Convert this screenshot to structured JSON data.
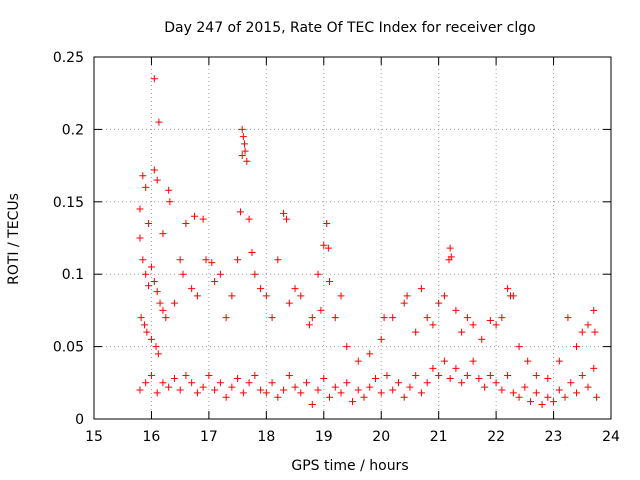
{
  "chart_data": {
    "type": "scatter",
    "title": "Day 247 of 2015, Rate Of TEC Index for receiver clgo",
    "xlabel": "GPS time / hours",
    "ylabel": "ROTI / TECUs",
    "xlim": [
      15,
      24
    ],
    "ylim": [
      0,
      0.25
    ],
    "grid": true,
    "marker": "+",
    "series_color": "#ff0000",
    "x_ticks": [
      {
        "value": 15,
        "label": "15"
      },
      {
        "value": 16,
        "label": "16"
      },
      {
        "value": 17,
        "label": "17"
      },
      {
        "value": 18,
        "label": "18"
      },
      {
        "value": 19,
        "label": "19"
      },
      {
        "value": 20,
        "label": "20"
      },
      {
        "value": 21,
        "label": "21"
      },
      {
        "value": 22,
        "label": "22"
      },
      {
        "value": 23,
        "label": "23"
      },
      {
        "value": 24,
        "label": "24"
      }
    ],
    "y_ticks": [
      {
        "value": 0,
        "label": "0"
      },
      {
        "value": 0.05,
        "label": "0.05"
      },
      {
        "value": 0.1,
        "label": "0.1"
      },
      {
        "value": 0.15,
        "label": "0.15"
      },
      {
        "value": 0.2,
        "label": "0.2"
      },
      {
        "value": 0.25,
        "label": "0.25"
      }
    ],
    "points": [
      [
        16.05,
        0.235
      ],
      [
        16.13,
        0.205
      ],
      [
        17.58,
        0.2
      ],
      [
        17.6,
        0.195
      ],
      [
        17.62,
        0.19
      ],
      [
        17.58,
        0.182
      ],
      [
        17.63,
        0.185
      ],
      [
        17.66,
        0.178
      ],
      [
        15.85,
        0.168
      ],
      [
        15.9,
        0.16
      ],
      [
        16.05,
        0.172
      ],
      [
        16.1,
        0.165
      ],
      [
        16.3,
        0.158
      ],
      [
        16.32,
        0.15
      ],
      [
        15.8,
        0.145
      ],
      [
        15.95,
        0.135
      ],
      [
        16.2,
        0.128
      ],
      [
        16.6,
        0.135
      ],
      [
        16.75,
        0.14
      ],
      [
        16.9,
        0.138
      ],
      [
        17.55,
        0.143
      ],
      [
        17.7,
        0.138
      ],
      [
        18.3,
        0.142
      ],
      [
        18.35,
        0.138
      ],
      [
        19.05,
        0.135
      ],
      [
        19.0,
        0.12
      ],
      [
        19.08,
        0.118
      ],
      [
        21.2,
        0.118
      ],
      [
        21.22,
        0.112
      ],
      [
        21.18,
        0.11
      ],
      [
        22.2,
        0.09
      ],
      [
        22.25,
        0.085
      ],
      [
        15.8,
        0.125
      ],
      [
        15.85,
        0.11
      ],
      [
        15.9,
        0.1
      ],
      [
        15.95,
        0.092
      ],
      [
        16.0,
        0.105
      ],
      [
        16.05,
        0.095
      ],
      [
        16.1,
        0.088
      ],
      [
        16.15,
        0.08
      ],
      [
        16.2,
        0.075
      ],
      [
        15.82,
        0.07
      ],
      [
        15.88,
        0.065
      ],
      [
        15.92,
        0.06
      ],
      [
        16.0,
        0.055
      ],
      [
        16.08,
        0.05
      ],
      [
        16.12,
        0.045
      ],
      [
        16.25,
        0.07
      ],
      [
        16.4,
        0.08
      ],
      [
        16.5,
        0.11
      ],
      [
        16.55,
        0.1
      ],
      [
        16.7,
        0.09
      ],
      [
        16.8,
        0.085
      ],
      [
        16.95,
        0.11
      ],
      [
        17.05,
        0.108
      ],
      [
        17.1,
        0.095
      ],
      [
        17.2,
        0.1
      ],
      [
        17.3,
        0.07
      ],
      [
        17.4,
        0.085
      ],
      [
        17.5,
        0.11
      ],
      [
        17.75,
        0.115
      ],
      [
        17.8,
        0.1
      ],
      [
        17.9,
        0.09
      ],
      [
        18.0,
        0.085
      ],
      [
        18.1,
        0.07
      ],
      [
        18.2,
        0.11
      ],
      [
        18.4,
        0.08
      ],
      [
        18.5,
        0.09
      ],
      [
        18.6,
        0.085
      ],
      [
        18.75,
        0.065
      ],
      [
        18.8,
        0.07
      ],
      [
        18.9,
        0.1
      ],
      [
        18.95,
        0.075
      ],
      [
        19.1,
        0.095
      ],
      [
        19.2,
        0.07
      ],
      [
        19.3,
        0.085
      ],
      [
        19.4,
        0.05
      ],
      [
        19.6,
        0.04
      ],
      [
        19.8,
        0.045
      ],
      [
        20.0,
        0.055
      ],
      [
        20.05,
        0.07
      ],
      [
        20.2,
        0.07
      ],
      [
        20.4,
        0.08
      ],
      [
        20.45,
        0.085
      ],
      [
        20.6,
        0.06
      ],
      [
        20.7,
        0.09
      ],
      [
        20.8,
        0.07
      ],
      [
        20.9,
        0.065
      ],
      [
        21.0,
        0.08
      ],
      [
        21.1,
        0.085
      ],
      [
        21.3,
        0.075
      ],
      [
        21.4,
        0.06
      ],
      [
        21.5,
        0.07
      ],
      [
        21.6,
        0.065
      ],
      [
        21.75,
        0.055
      ],
      [
        21.9,
        0.068
      ],
      [
        22.0,
        0.065
      ],
      [
        22.1,
        0.07
      ],
      [
        22.3,
        0.085
      ],
      [
        22.4,
        0.05
      ],
      [
        22.55,
        0.04
      ],
      [
        22.7,
        0.03
      ],
      [
        22.9,
        0.028
      ],
      [
        23.1,
        0.04
      ],
      [
        23.25,
        0.07
      ],
      [
        23.4,
        0.05
      ],
      [
        23.5,
        0.06
      ],
      [
        23.6,
        0.065
      ],
      [
        23.7,
        0.075
      ],
      [
        23.72,
        0.06
      ],
      [
        15.8,
        0.02
      ],
      [
        15.9,
        0.025
      ],
      [
        16.0,
        0.03
      ],
      [
        16.1,
        0.018
      ],
      [
        16.2,
        0.025
      ],
      [
        16.3,
        0.022
      ],
      [
        16.4,
        0.028
      ],
      [
        16.5,
        0.02
      ],
      [
        16.6,
        0.03
      ],
      [
        16.7,
        0.025
      ],
      [
        16.8,
        0.018
      ],
      [
        16.9,
        0.022
      ],
      [
        17.0,
        0.03
      ],
      [
        17.1,
        0.02
      ],
      [
        17.2,
        0.025
      ],
      [
        17.3,
        0.015
      ],
      [
        17.4,
        0.022
      ],
      [
        17.5,
        0.028
      ],
      [
        17.6,
        0.018
      ],
      [
        17.7,
        0.025
      ],
      [
        17.8,
        0.03
      ],
      [
        17.9,
        0.02
      ],
      [
        18.0,
        0.018
      ],
      [
        18.1,
        0.025
      ],
      [
        18.2,
        0.015
      ],
      [
        18.3,
        0.02
      ],
      [
        18.4,
        0.03
      ],
      [
        18.5,
        0.022
      ],
      [
        18.6,
        0.018
      ],
      [
        18.7,
        0.025
      ],
      [
        18.8,
        0.01
      ],
      [
        18.9,
        0.02
      ],
      [
        19.0,
        0.028
      ],
      [
        19.1,
        0.015
      ],
      [
        19.2,
        0.022
      ],
      [
        19.3,
        0.018
      ],
      [
        19.4,
        0.025
      ],
      [
        19.5,
        0.012
      ],
      [
        19.6,
        0.02
      ],
      [
        19.7,
        0.015
      ],
      [
        19.8,
        0.022
      ],
      [
        19.9,
        0.028
      ],
      [
        20.0,
        0.018
      ],
      [
        20.1,
        0.03
      ],
      [
        20.2,
        0.02
      ],
      [
        20.3,
        0.025
      ],
      [
        20.4,
        0.015
      ],
      [
        20.5,
        0.022
      ],
      [
        20.6,
        0.03
      ],
      [
        20.7,
        0.018
      ],
      [
        20.8,
        0.025
      ],
      [
        20.9,
        0.035
      ],
      [
        21.0,
        0.03
      ],
      [
        21.1,
        0.04
      ],
      [
        21.2,
        0.028
      ],
      [
        21.3,
        0.035
      ],
      [
        21.4,
        0.025
      ],
      [
        21.5,
        0.03
      ],
      [
        21.6,
        0.04
      ],
      [
        21.7,
        0.028
      ],
      [
        21.8,
        0.022
      ],
      [
        21.9,
        0.03
      ],
      [
        22.0,
        0.025
      ],
      [
        22.1,
        0.02
      ],
      [
        22.2,
        0.03
      ],
      [
        22.3,
        0.018
      ],
      [
        22.4,
        0.015
      ],
      [
        22.5,
        0.022
      ],
      [
        22.6,
        0.012
      ],
      [
        22.7,
        0.018
      ],
      [
        22.8,
        0.01
      ],
      [
        22.9,
        0.015
      ],
      [
        23.0,
        0.012
      ],
      [
        23.1,
        0.02
      ],
      [
        23.2,
        0.015
      ],
      [
        23.3,
        0.025
      ],
      [
        23.4,
        0.018
      ],
      [
        23.5,
        0.03
      ],
      [
        23.6,
        0.022
      ],
      [
        23.7,
        0.035
      ],
      [
        23.75,
        0.015
      ]
    ]
  }
}
